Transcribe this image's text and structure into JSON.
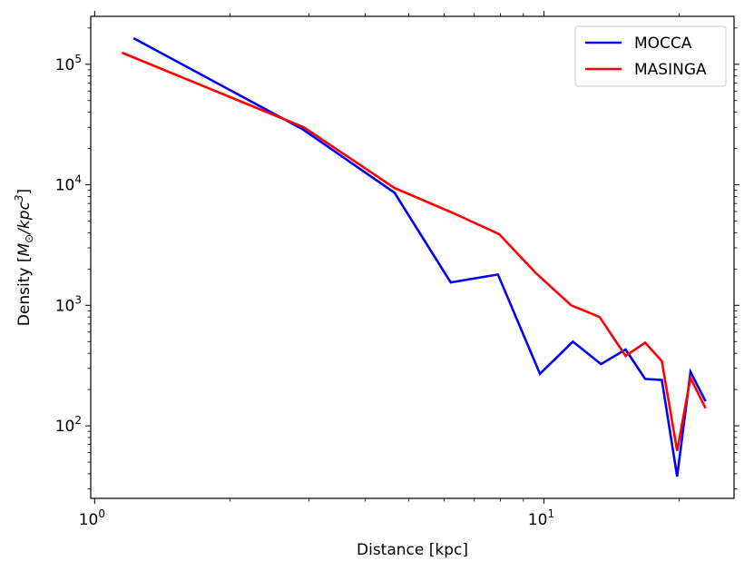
{
  "chart_data": {
    "type": "line",
    "title": "",
    "xlabel": "Distance [kpc]",
    "ylabel_main": "Density [",
    "ylabel_math": "M",
    "ylabel_sub": "⊙",
    "ylabel_mid": "/kpc",
    "ylabel_sup": "3",
    "ylabel_end": "]",
    "xscale": "log",
    "yscale": "log",
    "xlim": [
      0.98,
      26.5
    ],
    "ylim": [
      25,
      250000
    ],
    "grid": false,
    "legend_position": "top-right",
    "x_ticks": [
      {
        "value": 1,
        "base": "10",
        "exp": "0"
      },
      {
        "value": 10,
        "base": "10",
        "exp": "1"
      }
    ],
    "y_ticks": [
      {
        "value": 100,
        "base": "10",
        "exp": "2"
      },
      {
        "value": 1000,
        "base": "10",
        "exp": "3"
      },
      {
        "value": 10000,
        "base": "10",
        "exp": "4"
      },
      {
        "value": 100000,
        "base": "10",
        "exp": "5"
      }
    ],
    "series": [
      {
        "name": "MOCCA",
        "color": "#0000ff",
        "x": [
          1.22,
          2.9,
          4.65,
          6.2,
          7.9,
          9.8,
          11.6,
          13.4,
          15.2,
          16.8,
          18.3,
          19.8,
          21.2,
          22.9
        ],
        "y": [
          165000,
          29000,
          8600,
          1550,
          1800,
          270,
          500,
          325,
          430,
          245,
          240,
          38,
          280,
          160
        ]
      },
      {
        "name": "MASINGA",
        "color": "#ff0000",
        "x": [
          1.15,
          2.92,
          4.65,
          6.3,
          7.95,
          9.6,
          11.5,
          13.3,
          15.2,
          16.8,
          18.3,
          19.8,
          21.2,
          22.9
        ],
        "y": [
          125000,
          30000,
          9400,
          5800,
          3900,
          1850,
          1000,
          800,
          380,
          490,
          345,
          62,
          250,
          140
        ]
      }
    ]
  }
}
